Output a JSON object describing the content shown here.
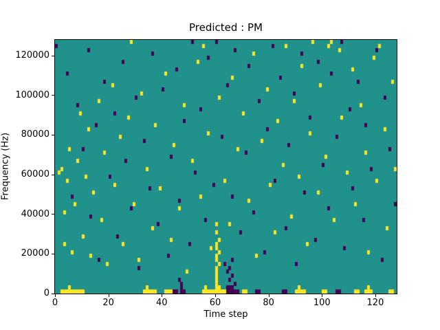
{
  "figure": {
    "title": "Predicted : PM",
    "x_axis_label": "Time step",
    "y_axis_label": "Frequency (Hz)"
  },
  "chart_data": {
    "type": "heatmap",
    "title": "Predicted : PM",
    "xlabel": "Time step",
    "ylabel": "Frequency (Hz)",
    "xlim": [
      0,
      128
    ],
    "ylim": [
      0,
      128000
    ],
    "x_ticks": [
      0,
      20,
      40,
      60,
      80,
      100,
      120
    ],
    "y_ticks": [
      0,
      20000,
      40000,
      60000,
      80000,
      100000,
      120000
    ],
    "grid": false,
    "legend": "none",
    "grid_size": {
      "time_bins": 128,
      "freq_bins": 64,
      "freq_bin_hz": 2000
    },
    "colormap": "viridis",
    "colors": {
      "background_value": "#21918c",
      "high_value": "#fde725",
      "low_value": "#440154"
    },
    "cells_high": [
      [
        2,
        0
      ],
      [
        3,
        0
      ],
      [
        4,
        0
      ],
      [
        5,
        0
      ],
      [
        6,
        0
      ],
      [
        7,
        0
      ],
      [
        8,
        0
      ],
      [
        9,
        0
      ],
      [
        10,
        0
      ],
      [
        33,
        0
      ],
      [
        34,
        0
      ],
      [
        35,
        0
      ],
      [
        36,
        0
      ],
      [
        37,
        0
      ],
      [
        41,
        0
      ],
      [
        42,
        0
      ],
      [
        43,
        0
      ],
      [
        55,
        0
      ],
      [
        56,
        0
      ],
      [
        57,
        0
      ],
      [
        58,
        0
      ],
      [
        59,
        0
      ],
      [
        60,
        0
      ],
      [
        61,
        0
      ],
      [
        62,
        0
      ],
      [
        63,
        0
      ],
      [
        70,
        0
      ],
      [
        71,
        0
      ],
      [
        90,
        0
      ],
      [
        91,
        0
      ],
      [
        92,
        0
      ],
      [
        93,
        0
      ],
      [
        100,
        0
      ],
      [
        101,
        0
      ],
      [
        112,
        0
      ],
      [
        113,
        0
      ],
      [
        116,
        0
      ],
      [
        117,
        0
      ],
      [
        118,
        0
      ],
      [
        125,
        0
      ],
      [
        126,
        0
      ],
      [
        5,
        1
      ],
      [
        34,
        1
      ],
      [
        56,
        1
      ],
      [
        60,
        1
      ],
      [
        61,
        1
      ],
      [
        91,
        1
      ],
      [
        117,
        1
      ],
      [
        60,
        2
      ],
      [
        60,
        3
      ],
      [
        60,
        4
      ],
      [
        60,
        5
      ],
      [
        60,
        6
      ],
      [
        61,
        7
      ],
      [
        60,
        8
      ],
      [
        60,
        9
      ],
      [
        61,
        10
      ],
      [
        60,
        11
      ],
      [
        60,
        12
      ],
      [
        61,
        13
      ],
      [
        60,
        15
      ],
      [
        60,
        17
      ],
      [
        1,
        30
      ],
      [
        2,
        31
      ],
      [
        3,
        20
      ],
      [
        3,
        12
      ],
      [
        4,
        28
      ],
      [
        5,
        36
      ],
      [
        6,
        10
      ],
      [
        7,
        22
      ],
      [
        8,
        33
      ],
      [
        9,
        45
      ],
      [
        10,
        14
      ],
      [
        11,
        29
      ],
      [
        12,
        41
      ],
      [
        13,
        9
      ],
      [
        14,
        25
      ],
      [
        16,
        48
      ],
      [
        17,
        18
      ],
      [
        18,
        35
      ],
      [
        19,
        7
      ],
      [
        21,
        52
      ],
      [
        22,
        27
      ],
      [
        24,
        39
      ],
      [
        25,
        12
      ],
      [
        27,
        44
      ],
      [
        28,
        63
      ],
      [
        29,
        22
      ],
      [
        31,
        8
      ],
      [
        32,
        50
      ],
      [
        34,
        31
      ],
      [
        36,
        16
      ],
      [
        37,
        42
      ],
      [
        39,
        26
      ],
      [
        41,
        55
      ],
      [
        43,
        13
      ],
      [
        44,
        37
      ],
      [
        46,
        21
      ],
      [
        48,
        47
      ],
      [
        49,
        5
      ],
      [
        51,
        33
      ],
      [
        53,
        58
      ],
      [
        54,
        24
      ],
      [
        55,
        62
      ],
      [
        57,
        40
      ],
      [
        58,
        11
      ],
      [
        61,
        49
      ],
      [
        63,
        28
      ],
      [
        65,
        17
      ],
      [
        66,
        54
      ],
      [
        68,
        36
      ],
      [
        70,
        45
      ],
      [
        72,
        23
      ],
      [
        74,
        60
      ],
      [
        75,
        9
      ],
      [
        77,
        38
      ],
      [
        79,
        51
      ],
      [
        80,
        27
      ],
      [
        82,
        15
      ],
      [
        83,
        43
      ],
      [
        85,
        32
      ],
      [
        86,
        62
      ],
      [
        88,
        19
      ],
      [
        89,
        48
      ],
      [
        91,
        29
      ],
      [
        92,
        57
      ],
      [
        94,
        12
      ],
      [
        95,
        40
      ],
      [
        96,
        63
      ],
      [
        98,
        25
      ],
      [
        99,
        52
      ],
      [
        101,
        34
      ],
      [
        102,
        62
      ],
      [
        103,
        63
      ],
      [
        104,
        18
      ],
      [
        106,
        61
      ],
      [
        107,
        44
      ],
      [
        109,
        30
      ],
      [
        111,
        56
      ],
      [
        112,
        22
      ],
      [
        114,
        47
      ],
      [
        116,
        35
      ],
      [
        117,
        10
      ],
      [
        119,
        59
      ],
      [
        120,
        28
      ],
      [
        121,
        62
      ],
      [
        123,
        41
      ],
      [
        124,
        16
      ],
      [
        126,
        53
      ],
      [
        127,
        31
      ]
    ],
    "cells_low": [
      [
        44,
        0
      ],
      [
        45,
        0
      ],
      [
        47,
        0
      ],
      [
        48,
        0
      ],
      [
        64,
        0
      ],
      [
        65,
        0
      ],
      [
        66,
        0
      ],
      [
        67,
        0
      ],
      [
        68,
        0
      ],
      [
        75,
        0
      ],
      [
        76,
        0
      ],
      [
        85,
        0
      ],
      [
        86,
        0
      ],
      [
        105,
        0
      ],
      [
        106,
        0
      ],
      [
        64,
        1
      ],
      [
        65,
        1
      ],
      [
        66,
        1
      ],
      [
        67,
        2
      ],
      [
        65,
        3
      ],
      [
        66,
        4
      ],
      [
        64,
        5
      ],
      [
        65,
        6
      ],
      [
        63,
        7
      ],
      [
        66,
        8
      ],
      [
        47,
        1
      ],
      [
        47,
        2
      ],
      [
        46,
        3
      ],
      [
        0,
        62
      ],
      [
        4,
        55
      ],
      [
        6,
        24
      ],
      [
        8,
        47
      ],
      [
        10,
        36
      ],
      [
        12,
        61
      ],
      [
        13,
        19
      ],
      [
        15,
        42
      ],
      [
        16,
        8
      ],
      [
        18,
        53
      ],
      [
        20,
        29
      ],
      [
        22,
        45
      ],
      [
        23,
        14
      ],
      [
        25,
        58
      ],
      [
        26,
        33
      ],
      [
        28,
        21
      ],
      [
        30,
        49
      ],
      [
        31,
        6
      ],
      [
        33,
        38
      ],
      [
        35,
        26
      ],
      [
        36,
        60
      ],
      [
        38,
        17
      ],
      [
        40,
        51
      ],
      [
        42,
        9
      ],
      [
        43,
        34
      ],
      [
        45,
        56
      ],
      [
        46,
        23
      ],
      [
        48,
        43
      ],
      [
        50,
        12
      ],
      [
        51,
        63
      ],
      [
        52,
        30
      ],
      [
        54,
        46
      ],
      [
        56,
        18
      ],
      [
        57,
        59
      ],
      [
        59,
        27
      ],
      [
        60,
        63
      ],
      [
        62,
        39
      ],
      [
        64,
        52
      ],
      [
        66,
        24
      ],
      [
        67,
        61
      ],
      [
        69,
        15
      ],
      [
        71,
        35
      ],
      [
        72,
        57
      ],
      [
        74,
        20
      ],
      [
        76,
        48
      ],
      [
        78,
        10
      ],
      [
        79,
        41
      ],
      [
        81,
        62
      ],
      [
        82,
        28
      ],
      [
        84,
        54
      ],
      [
        86,
        16
      ],
      [
        87,
        37
      ],
      [
        89,
        50
      ],
      [
        90,
        7
      ],
      [
        92,
        60
      ],
      [
        93,
        25
      ],
      [
        95,
        44
      ],
      [
        97,
        13
      ],
      [
        98,
        58
      ],
      [
        100,
        32
      ],
      [
        102,
        21
      ],
      [
        103,
        55
      ],
      [
        105,
        39
      ],
      [
        107,
        63
      ],
      [
        108,
        11
      ],
      [
        110,
        46
      ],
      [
        111,
        26
      ],
      [
        113,
        53
      ],
      [
        115,
        18
      ],
      [
        116,
        42
      ],
      [
        118,
        31
      ],
      [
        120,
        61
      ],
      [
        122,
        8
      ],
      [
        123,
        49
      ],
      [
        125,
        36
      ],
      [
        127,
        22
      ]
    ]
  }
}
